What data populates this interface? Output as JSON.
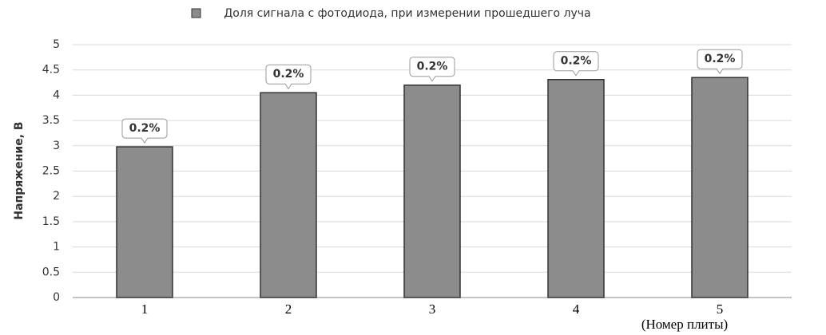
{
  "chart_data": {
    "type": "bar",
    "y_label": "Напряжение, В",
    "x_label": "(Номер плиты)",
    "categories": [
      "1",
      "2",
      "3",
      "4",
      "5"
    ],
    "series": [
      {
        "name": "Доля сигнала с фотодиода, при измерении прошедшего луча",
        "color": "#8c8c8c",
        "values": [
          2.98,
          4.05,
          4.2,
          4.31,
          4.35
        ]
      }
    ],
    "bar_labels": [
      "0.2%",
      "0.2%",
      "0.2%",
      "0.2%",
      "0.2%"
    ],
    "ylim": [
      0,
      5
    ],
    "yticks": [
      0,
      0.5,
      1,
      1.5,
      2,
      2.5,
      3,
      3.5,
      4,
      4.5,
      5
    ],
    "grid": true
  }
}
